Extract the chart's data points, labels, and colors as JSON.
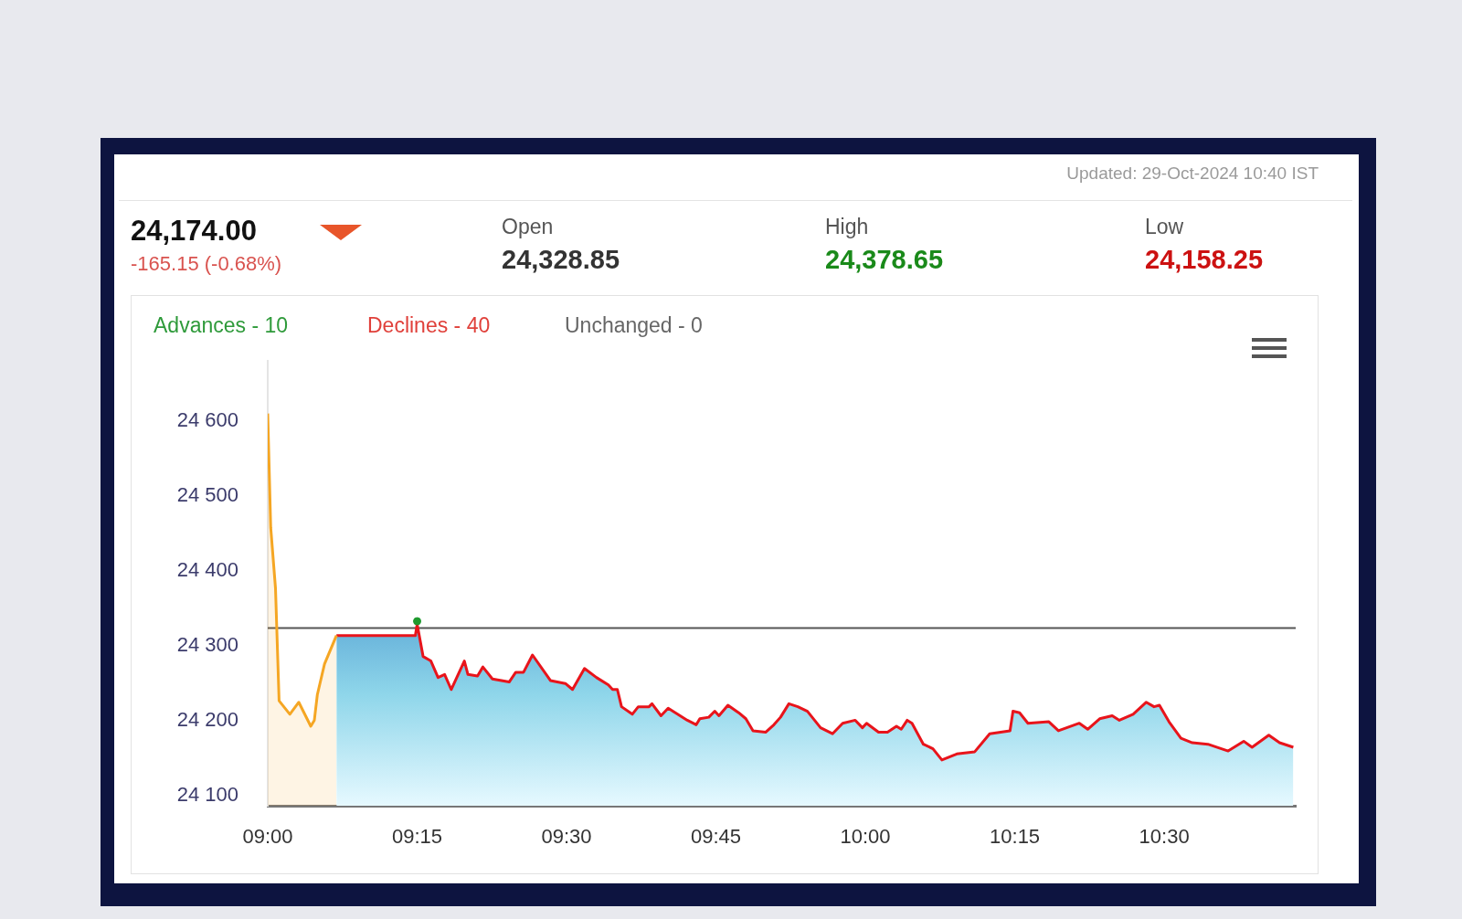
{
  "chart_data": {
    "type": "area",
    "annotations": [
      "Updated: 29-Oct-2024 10:40 IST",
      "24,174.00",
      "-165.15 (-0.68%)",
      "Open",
      "24,328.85",
      "High",
      "24,378.65",
      "Low",
      "24,158.25",
      "Advances - 10",
      "Declines - 40",
      "Unchanged - 0"
    ],
    "series": [
      {
        "color": "#f5a623",
        "x": [
          9.0,
          9.005,
          9.013,
          9.019,
          9.037,
          9.052,
          9.072,
          9.078,
          9.083,
          9.095,
          9.115
        ],
        "values": [
          24610,
          24458,
          24377,
          24227,
          24209,
          24225,
          24193,
          24201,
          24235,
          24276,
          24314
        ]
      },
      {
        "color": "#e8141b",
        "x": [
          9.115,
          9.247,
          9.25,
          9.26,
          9.273,
          9.285,
          9.296,
          9.307,
          9.329,
          9.335,
          9.351,
          9.36,
          9.376,
          9.404,
          9.415,
          9.428,
          9.443,
          9.473,
          9.498,
          9.51,
          9.53,
          9.55,
          9.57,
          9.577,
          9.585,
          9.592,
          9.61,
          9.62,
          9.638,
          9.643,
          9.658,
          9.67,
          9.702,
          9.717,
          9.723,
          9.738,
          9.748,
          9.755,
          9.77,
          9.788,
          9.8,
          9.812,
          9.833,
          9.847,
          9.858,
          9.872,
          9.887,
          9.903,
          9.925,
          9.945,
          9.962,
          9.983,
          9.995,
          10.002,
          10.022,
          10.037,
          10.052,
          10.06,
          10.07,
          10.078,
          10.097,
          10.113,
          10.128,
          10.153,
          10.183,
          10.208,
          10.242,
          10.247,
          10.258,
          10.272,
          10.307,
          10.323,
          10.358,
          10.372,
          10.392,
          10.413,
          10.425,
          10.448,
          10.47,
          10.483,
          10.492,
          10.508,
          10.528,
          10.547,
          10.573,
          10.607,
          10.633,
          10.647,
          10.675,
          10.693,
          10.716
        ],
        "values": [
          24314,
          24314,
          24329,
          24286,
          24280,
          24258,
          24262,
          24242,
          24280,
          24262,
          24260,
          24272,
          24256,
          24252,
          24265,
          24265,
          24288,
          24254,
          24250,
          24242,
          24270,
          24258,
          24248,
          24242,
          24242,
          24219,
          24209,
          24219,
          24219,
          24223,
          24207,
          24217,
          24201,
          24195,
          24203,
          24205,
          24213,
          24207,
          24221,
          24211,
          24203,
          24187,
          24185,
          24195,
          24205,
          24223,
          24219,
          24213,
          24191,
          24183,
          24197,
          24201,
          24191,
          24197,
          24185,
          24185,
          24193,
          24189,
          24201,
          24197,
          24169,
          24163,
          24148,
          24156,
          24159,
          24183,
          24187,
          24213,
          24211,
          24197,
          24199,
          24187,
          24197,
          24189,
          24203,
          24207,
          24201,
          24209,
          24225,
          24219,
          24221,
          24199,
          24177,
          24171,
          24169,
          24160,
          24173,
          24165,
          24181,
          24171,
          24165
        ]
      },
      {
        "type": "scatter",
        "color": "#1f9a2f",
        "x": [
          9.25
        ],
        "values": [
          24333
        ]
      }
    ],
    "xlim": [
      9,
      10.72
    ],
    "xticks": [
      {
        "value": 9,
        "label": "09:00"
      },
      {
        "value": 9.25,
        "label": "09:15"
      },
      {
        "value": 9.5,
        "label": "09:30"
      },
      {
        "value": 9.75,
        "label": "09:45"
      },
      {
        "value": 10,
        "label": "10:00"
      },
      {
        "value": 10.25,
        "label": "10:15"
      },
      {
        "value": 10.5,
        "label": "10:30"
      }
    ],
    "ylim": [
      24087,
      24680
    ],
    "yticks": [
      {
        "value": 24100,
        "label": "24 100"
      },
      {
        "value": 24200,
        "label": "24 200"
      },
      {
        "value": 24300,
        "label": "24 300"
      },
      {
        "value": 24400,
        "label": "24 400"
      },
      {
        "value": 24500,
        "label": "24 500"
      },
      {
        "value": 24600,
        "label": "24 600"
      }
    ],
    "ref_lines": [
      {
        "axis": "y",
        "value": 24324,
        "color": "#555555"
      }
    ],
    "grid": false,
    "legend": false
  }
}
